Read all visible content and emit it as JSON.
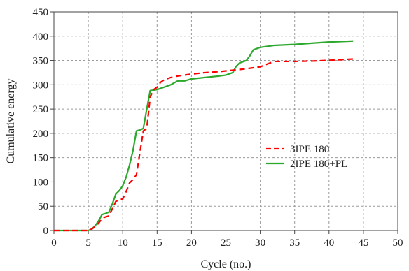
{
  "chart_data": {
    "type": "line",
    "title": "",
    "xlabel": "Cycle (no.)",
    "ylabel": "Cumulative energy",
    "xlim": [
      0,
      50
    ],
    "ylim": [
      0,
      450
    ],
    "xticks": [
      0,
      5,
      10,
      15,
      20,
      25,
      30,
      35,
      40,
      45,
      50
    ],
    "yticks": [
      0,
      50,
      100,
      150,
      200,
      250,
      300,
      350,
      400,
      450
    ],
    "grid": true,
    "legend_position": "right-middle",
    "series": [
      {
        "name": "3IPE 180",
        "color": "#ff0000",
        "line_style": "dashed",
        "x": [
          0,
          5,
          5.5,
          6,
          6.5,
          7,
          7.5,
          8,
          8.5,
          9,
          9.5,
          10,
          10.5,
          11,
          11.5,
          12,
          12.5,
          13,
          13.5,
          14,
          14.5,
          15,
          15.5,
          16,
          17,
          18,
          19,
          20,
          22,
          24,
          26,
          28,
          30,
          32,
          35,
          38,
          41,
          43.5
        ],
        "y": [
          0,
          0,
          3,
          8,
          15,
          25,
          28,
          30,
          45,
          60,
          63,
          65,
          80,
          98,
          105,
          115,
          160,
          205,
          210,
          275,
          290,
          295,
          305,
          310,
          315,
          318,
          320,
          322,
          325,
          327,
          330,
          333,
          337,
          348,
          348,
          349,
          351,
          353
        ]
      },
      {
        "name": "2IPE 180+PL",
        "color": "#2ca82c",
        "line_style": "solid",
        "x": [
          0,
          5,
          5.5,
          6,
          6.5,
          7,
          7.5,
          8,
          8.5,
          9,
          9.5,
          10,
          10.5,
          11,
          11.5,
          12,
          12.5,
          13,
          13.5,
          14,
          15,
          16,
          17,
          18,
          19,
          20,
          22,
          24,
          25,
          26,
          26.5,
          27,
          28,
          28.5,
          29,
          30,
          32,
          35,
          38,
          40,
          43.5
        ],
        "y": [
          0,
          0,
          3,
          10,
          20,
          33,
          35,
          38,
          55,
          75,
          82,
          92,
          110,
          135,
          165,
          205,
          207,
          210,
          250,
          288,
          290,
          295,
          300,
          308,
          308,
          312,
          315,
          318,
          320,
          325,
          338,
          345,
          350,
          360,
          372,
          377,
          381,
          383,
          386,
          388,
          390
        ]
      }
    ]
  }
}
